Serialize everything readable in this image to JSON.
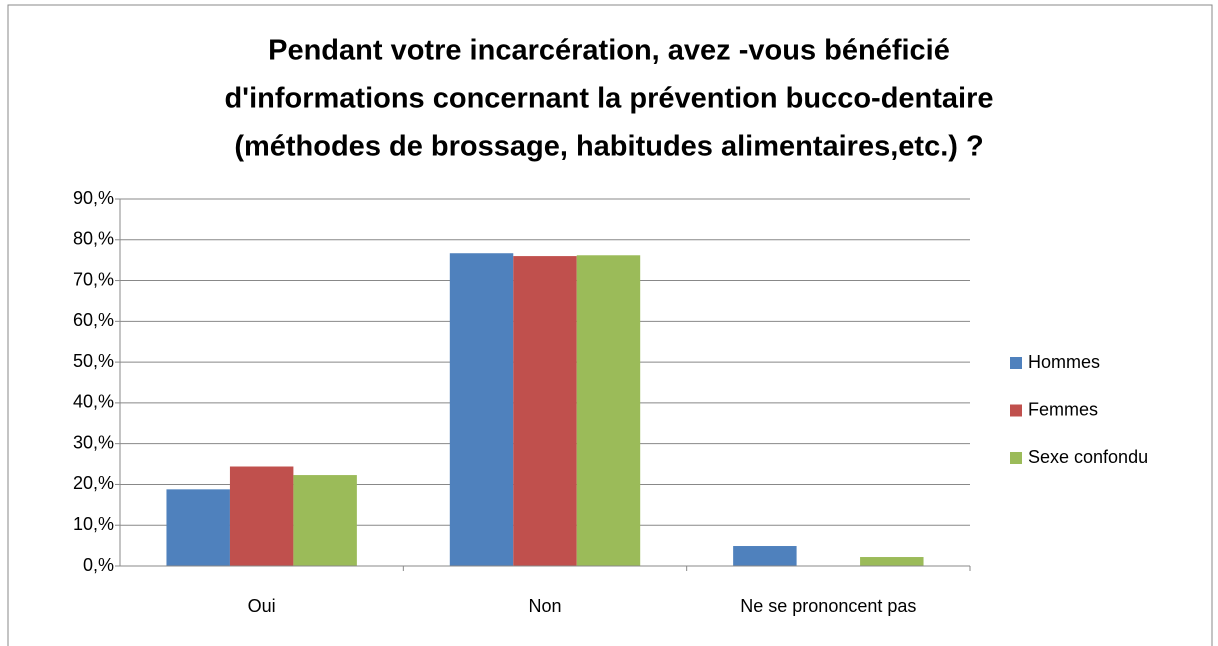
{
  "chart_data": {
    "type": "bar",
    "title": [
      "Pendant votre incarcération, avez -vous bénéficié",
      "d'informations concernant la prévention bucco-dentaire",
      "(méthodes de brossage, habitudes alimentaires,etc.) ?"
    ],
    "categories": [
      "Oui",
      "Non",
      "Ne se prononcent pas"
    ],
    "series": [
      {
        "name": "Hommes",
        "color": "#4f81bd",
        "values": [
          18.8,
          76.7,
          4.9
        ]
      },
      {
        "name": "Femmes",
        "color": "#c0504d",
        "values": [
          24.4,
          76.0,
          0
        ]
      },
      {
        "name": "Sexe confondu",
        "color": "#9bbb59",
        "values": [
          22.3,
          76.2,
          2.2
        ]
      }
    ],
    "ylim": [
      0,
      90
    ],
    "yticks": [
      {
        "value": 0,
        "label": "0,%"
      },
      {
        "value": 10,
        "label": "10,%"
      },
      {
        "value": 20,
        "label": "20,%"
      },
      {
        "value": 30,
        "label": "30,%"
      },
      {
        "value": 40,
        "label": "40,%"
      },
      {
        "value": 50,
        "label": "50,%"
      },
      {
        "value": 60,
        "label": "60,%"
      },
      {
        "value": 70,
        "label": "70,%"
      },
      {
        "value": 80,
        "label": "80,%"
      },
      {
        "value": 90,
        "label": "90,%"
      }
    ],
    "grid": true,
    "legend": "right"
  }
}
